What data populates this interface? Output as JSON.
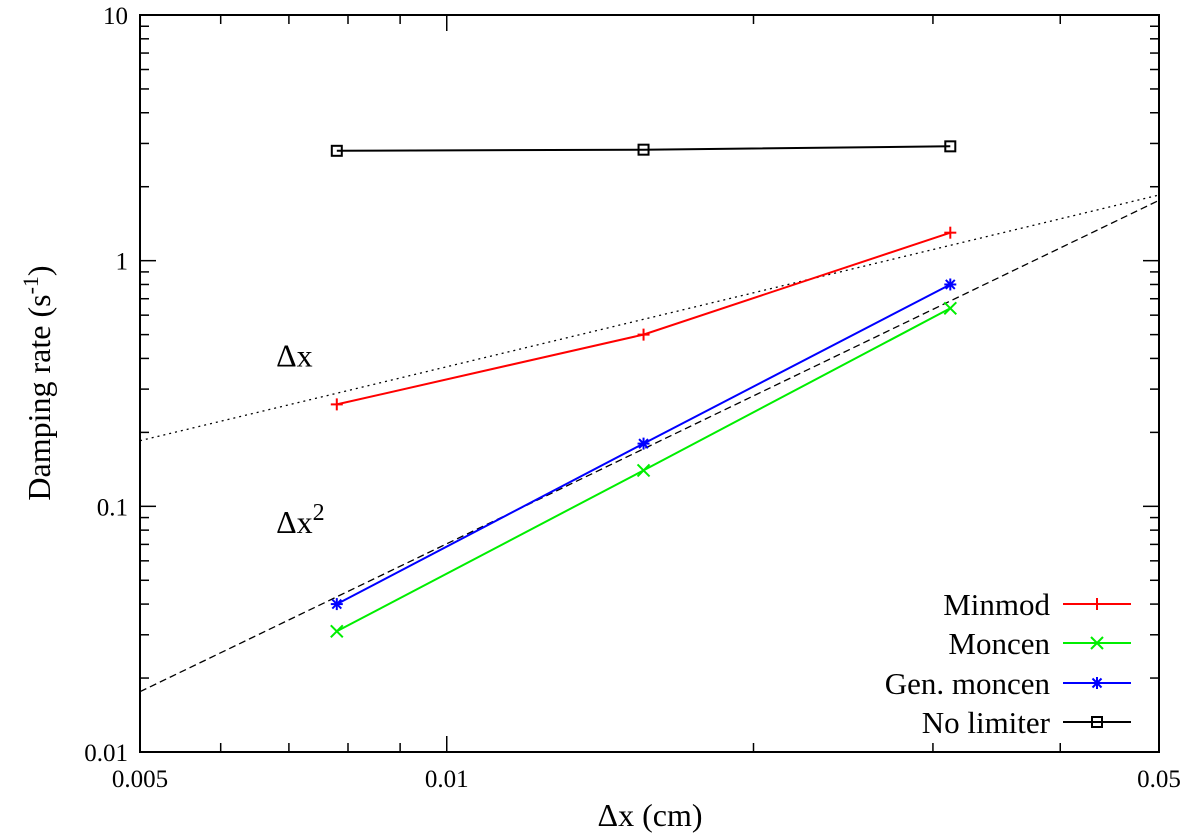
{
  "chart_data": {
    "type": "line",
    "xscale": "log",
    "yscale": "log",
    "xlim": [
      0.005,
      0.05
    ],
    "ylim": [
      0.01,
      10
    ],
    "xlabel": "Δx (cm)",
    "ylabel": "Damping rate (s",
    "ylabel_sup": "-1",
    "ylabel_close": ")",
    "xticks": [
      {
        "value": 0.005,
        "label": "0.005"
      },
      {
        "value": 0.01,
        "label": "0.01"
      },
      {
        "value": 0.05,
        "label": "0.05"
      }
    ],
    "yticks": [
      {
        "value": 0.01,
        "label": "0.01"
      },
      {
        "value": 0.1,
        "label": "0.1"
      },
      {
        "value": 1,
        "label": "1"
      },
      {
        "value": 10,
        "label": "10"
      }
    ],
    "legend_position": "bottom-right",
    "series": [
      {
        "name": "Minmod",
        "color": "#ff0000",
        "marker": "plus",
        "x": [
          0.0078,
          0.0156,
          0.0312
        ],
        "y": [
          0.26,
          0.5,
          1.3
        ]
      },
      {
        "name": "Moncen",
        "color": "#00ee00",
        "marker": "cross",
        "x": [
          0.0078,
          0.0156,
          0.0312
        ],
        "y": [
          0.031,
          0.14,
          0.64
        ]
      },
      {
        "name": "Gen. moncen",
        "color": "#0000ff",
        "marker": "star",
        "x": [
          0.0078,
          0.0156,
          0.0312
        ],
        "y": [
          0.04,
          0.18,
          0.8
        ]
      },
      {
        "name": "No limiter",
        "color": "#000000",
        "marker": "square",
        "x": [
          0.0078,
          0.0156,
          0.0312
        ],
        "y": [
          2.8,
          2.83,
          2.92
        ]
      }
    ],
    "reference_lines": [
      {
        "style": "dotted",
        "x": [
          0.005,
          0.05
        ],
        "y": [
          0.185,
          1.85
        ]
      },
      {
        "style": "dashed",
        "x": [
          0.005,
          0.05
        ],
        "y": [
          0.0176,
          1.76
        ]
      }
    ],
    "annotations": [
      {
        "text": "Δx",
        "sup": "",
        "x": 0.0068,
        "y": 0.37
      },
      {
        "text": "Δx",
        "sup": "2",
        "x": 0.0068,
        "y": 0.078
      }
    ]
  }
}
